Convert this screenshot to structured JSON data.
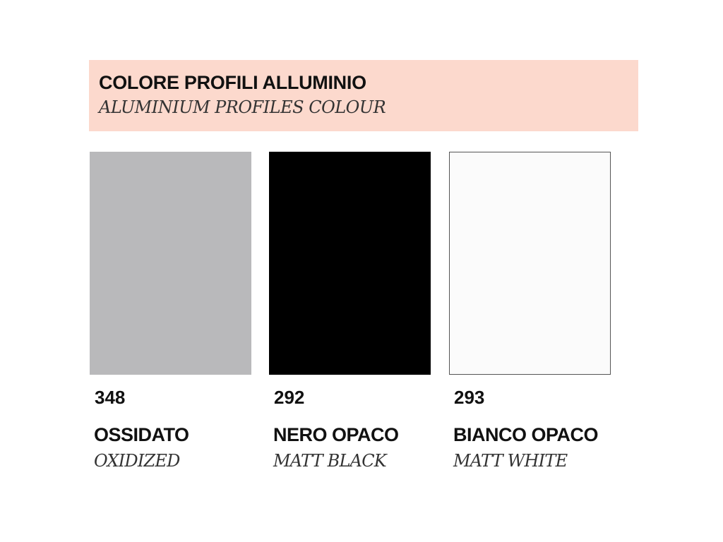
{
  "header": {
    "title": "COLORE PROFILI ALLUMINIO",
    "subtitle": "ALUMINIUM PROFILES COLOUR",
    "background": "#fcd9cd"
  },
  "swatches": [
    {
      "code": "348",
      "name": "OSSIDATO",
      "name_en": "OXIDIZED",
      "color": "#b9b9bb"
    },
    {
      "code": "292",
      "name": "NERO OPACO",
      "name_en": "MATT BLACK",
      "color": "#000000"
    },
    {
      "code": "293",
      "name": "BIANCO OPACO",
      "name_en": "MATT WHITE",
      "color": "#fbfbfb"
    }
  ]
}
